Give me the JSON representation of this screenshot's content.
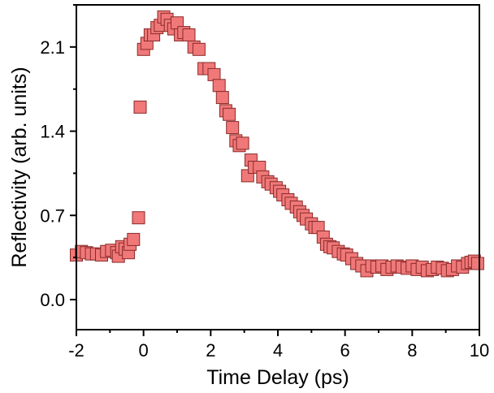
{
  "chart_data": {
    "type": "scatter",
    "xlabel": "Time Delay (ps)",
    "ylabel": "Reflectivity (arb. units)",
    "xlim": [
      -2,
      10
    ],
    "ylim": [
      -0.25,
      2.45
    ],
    "xticks": [
      -2,
      0,
      2,
      4,
      6,
      8,
      10
    ],
    "xtick_labels": [
      "-2",
      "0",
      "2",
      "4",
      "6",
      "8",
      "10"
    ],
    "yticks": [
      0.0,
      0.7,
      1.4,
      2.1
    ],
    "ytick_labels": [
      "0.0",
      "0.7",
      "1.4",
      "2.1"
    ],
    "marker": "square",
    "marker_fill": "#f07878",
    "marker_edge": "#8a2a2a",
    "grid": false,
    "series": [
      {
        "x": [
          -2.0,
          -1.85,
          -1.7,
          -1.55,
          -1.4,
          -1.25,
          -1.1,
          -0.95,
          -0.8,
          -0.75,
          -0.65,
          -0.55,
          -0.45,
          -0.4,
          -0.3,
          -0.15,
          -0.1,
          0.0,
          0.1,
          0.2,
          0.3,
          0.4,
          0.5,
          0.6,
          0.7,
          0.8,
          0.9,
          1.0,
          1.1,
          1.2,
          1.35,
          1.5,
          1.65,
          1.8,
          1.95,
          2.1,
          2.25,
          2.35,
          2.45,
          2.55,
          2.65,
          2.75,
          2.85,
          2.95,
          3.1,
          3.2,
          3.3,
          3.45,
          3.55,
          3.7,
          3.8,
          3.95,
          4.05,
          4.15,
          4.3,
          4.4,
          4.55,
          4.65,
          4.75,
          4.85,
          5.0,
          5.1,
          5.2,
          5.35,
          5.45,
          5.55,
          5.65,
          5.8,
          5.95,
          6.05,
          6.2,
          6.35,
          6.5,
          6.65,
          6.8,
          6.95,
          7.1,
          7.25,
          7.4,
          7.55,
          7.7,
          7.85,
          8.0,
          8.15,
          8.3,
          8.45,
          8.6,
          8.75,
          8.9,
          9.05,
          9.2,
          9.35,
          9.5,
          9.65,
          9.75,
          9.85,
          9.95
        ],
        "y": [
          0.37,
          0.4,
          0.39,
          0.38,
          0.38,
          0.37,
          0.4,
          0.41,
          0.39,
          0.36,
          0.44,
          0.42,
          0.39,
          0.46,
          0.5,
          0.68,
          1.6,
          2.08,
          2.13,
          2.2,
          2.2,
          2.26,
          2.28,
          2.35,
          2.33,
          2.28,
          2.25,
          2.3,
          2.2,
          2.22,
          2.2,
          2.1,
          2.08,
          1.92,
          1.92,
          1.87,
          1.78,
          1.68,
          1.57,
          1.54,
          1.43,
          1.32,
          1.28,
          1.3,
          1.03,
          1.16,
          1.1,
          1.1,
          1.02,
          0.98,
          0.96,
          0.93,
          0.9,
          0.87,
          0.83,
          0.8,
          0.77,
          0.73,
          0.7,
          0.67,
          0.63,
          0.6,
          0.6,
          0.52,
          0.46,
          0.44,
          0.43,
          0.4,
          0.38,
          0.37,
          0.34,
          0.3,
          0.28,
          0.24,
          0.28,
          0.27,
          0.28,
          0.25,
          0.27,
          0.28,
          0.27,
          0.26,
          0.28,
          0.25,
          0.27,
          0.24,
          0.25,
          0.27,
          0.26,
          0.24,
          0.25,
          0.28,
          0.27,
          0.3,
          0.31,
          0.32,
          0.3
        ]
      }
    ]
  }
}
